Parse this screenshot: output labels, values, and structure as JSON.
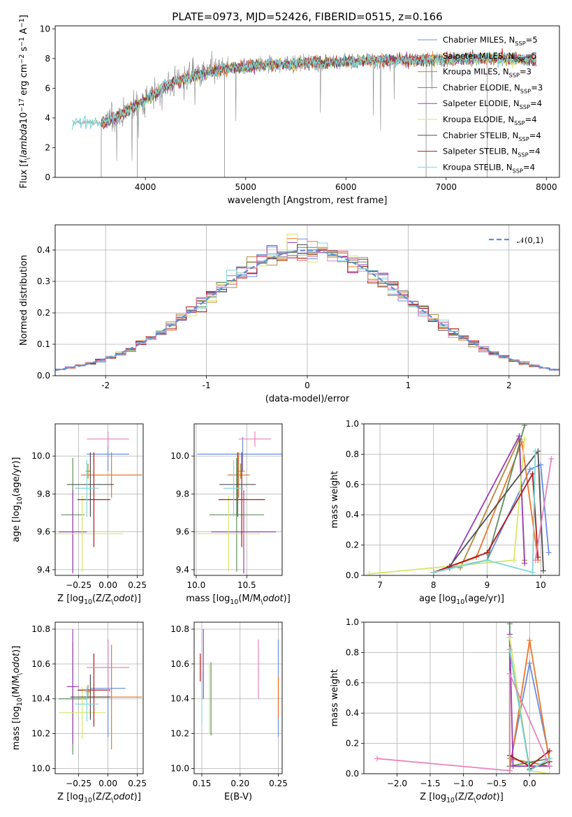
{
  "colors": {
    "Chabrier MILES": "#6a8fe0",
    "Salpeter MILES": "#e8782a",
    "Kroupa MILES": "#b08a3a",
    "Chabrier ELODIE": "#5e8f5e",
    "Salpeter ELODIE": "#9a3fb5",
    "Kroupa ELODIE": "#d6e86a",
    "Chabrier STELIB": "#505050",
    "Salpeter STELIB": "#b01818",
    "Kroupa STELIB": "#7fd8d8",
    "extra": "#e884b8",
    "normal": "#5b8fd8",
    "data": "#8a8a8a"
  },
  "chart_data": [
    {
      "id": "spectrum",
      "type": "line",
      "title": "PLATE=0973, MJD=52426, FIBERID=0515, z=0.166",
      "xlabel": "wavelength [Angstrom, rest frame]",
      "ylabel": "Flux [f$_\\lambda$10$^{-17}$ erg cm$^{-2}$ s$^{-1}$ A$^{-1}$]",
      "xlim": [
        3100,
        8130
      ],
      "ylim": [
        0,
        10.2
      ],
      "xticks": [
        4000,
        5000,
        6000,
        7000,
        8000
      ],
      "yticks": [
        0,
        2,
        4,
        6,
        8,
        10
      ],
      "grid": false,
      "legend_position": "right",
      "legend": [
        "Chabrier MILES, N$_{SSP}$=5",
        "Salpeter MILES, N$_{SSP}$=5",
        "Kroupa MILES, N$_{SSP}$=3",
        "Chabrier ELODIE, N$_{SSP}$=3",
        "Salpeter ELODIE, N$_{SSP}$=4",
        "Kroupa ELODIE, N$_{SSP}$=4",
        "Chabrier STELIB, N$_{SSP}$=4",
        "Salpeter STELIB, N$_{SSP}$=4",
        "Kroupa STELIB, N$_{SSP}$=4"
      ],
      "continuum": {
        "x": [
          3270,
          3600,
          3800,
          4000,
          4200,
          4400,
          4600,
          4800,
          5000,
          5300,
          5600,
          6000,
          6400,
          6800,
          7200,
          7600,
          7900
        ],
        "y": [
          3.7,
          3.7,
          4.4,
          5.2,
          6.1,
          6.7,
          7.0,
          7.3,
          7.5,
          7.6,
          7.7,
          7.8,
          7.9,
          7.9,
          8.0,
          8.0,
          7.9
        ]
      }
    },
    {
      "id": "residuals",
      "type": "bar",
      "xlabel": "(data-model)/error",
      "ylabel": "Normed distribution",
      "xlim": [
        -2.5,
        2.5
      ],
      "ylim": [
        0,
        0.48
      ],
      "xticks": [
        -2,
        -1,
        0,
        1,
        2
      ],
      "yticks": [
        0.0,
        0.1,
        0.2,
        0.3,
        0.4
      ],
      "grid": true,
      "legend": [
        "$\\mathcal{N}(0,1)$"
      ],
      "legend_position": "top-right",
      "bin_width": 0.1
    },
    {
      "id": "age_vs_Z",
      "type": "scatter",
      "xlabel": "Z [log$_{10}$(Z/Z$_\\odot$)]",
      "ylabel": "age  [log$_{10}$(age/yr)]",
      "xlim": [
        -0.45,
        0.3
      ],
      "ylim": [
        9.37,
        10.17
      ],
      "xticks": [
        -0.25,
        0.0,
        0.25
      ],
      "xticklabels": [
        "−0.25",
        "0.00",
        "0.25"
      ],
      "yticks": [
        9.4,
        9.6,
        9.8,
        10.0
      ],
      "grid": true,
      "points": [
        {
          "series": "Chabrier MILES",
          "x": 0.0,
          "xerr": 0.18,
          "y": 10.01,
          "yerr": 0.09
        },
        {
          "series": "Salpeter MILES",
          "x": 0.03,
          "xerr": 0.26,
          "y": 9.9,
          "yerr": 0.12
        },
        {
          "series": "Kroupa MILES",
          "x": -0.17,
          "xerr": 0.02,
          "y": 9.92,
          "yerr": 0.04
        },
        {
          "series": "Chabrier ELODIE",
          "x": -0.3,
          "xerr": 0.1,
          "y": 9.69,
          "yerr": 0.3
        },
        {
          "series": "Salpeter ELODIE",
          "x": -0.3,
          "xerr": 0.12,
          "y": 9.6,
          "yerr": 0.22
        },
        {
          "series": "Kroupa ELODIE",
          "x": -0.22,
          "xerr": 0.35,
          "y": 9.59,
          "yerr": 0.2
        },
        {
          "series": "Chabrier STELIB",
          "x": -0.15,
          "xerr": 0.2,
          "y": 9.85,
          "yerr": 0.17
        },
        {
          "series": "Salpeter STELIB",
          "x": -0.12,
          "xerr": 0.14,
          "y": 9.77,
          "yerr": 0.25
        },
        {
          "series": "Kroupa STELIB",
          "x": -0.18,
          "xerr": 0.1,
          "y": 9.83,
          "yerr": 0.15
        },
        {
          "series": "extra",
          "x": 0.0,
          "xerr": 0.18,
          "y": 10.09,
          "yerr": 0.04
        }
      ]
    },
    {
      "id": "age_vs_mass",
      "type": "scatter",
      "xlabel": "mass [log$_{10}$(M/M$_\\odot$)]",
      "xlim": [
        9.98,
        10.85
      ],
      "ylim": [
        9.37,
        10.17
      ],
      "xticks": [
        10.0,
        10.5
      ],
      "xticklabels": [
        "10.0",
        "10.5"
      ],
      "yticks": [
        9.4,
        9.6,
        9.8,
        10.0
      ],
      "grid": true,
      "points": [
        {
          "series": "Chabrier MILES",
          "x": 10.46,
          "xerr": 0.45,
          "y": 10.01,
          "yerr": 0.09
        },
        {
          "series": "Salpeter MILES",
          "x": 10.42,
          "xerr": 0.11,
          "y": 9.9,
          "yerr": 0.12
        },
        {
          "series": "Kroupa MILES",
          "x": 10.44,
          "xerr": 0.04,
          "y": 9.92,
          "yerr": 0.04
        },
        {
          "series": "Chabrier ELODIE",
          "x": 10.4,
          "xerr": 0.27,
          "y": 9.69,
          "yerr": 0.3
        },
        {
          "series": "Salpeter ELODIE",
          "x": 10.47,
          "xerr": 0.32,
          "y": 9.6,
          "yerr": 0.22
        },
        {
          "series": "Kroupa ELODIE",
          "x": 10.32,
          "xerr": 0.31,
          "y": 9.59,
          "yerr": 0.2
        },
        {
          "series": "Chabrier STELIB",
          "x": 10.41,
          "xerr": 0.18,
          "y": 9.85,
          "yerr": 0.17
        },
        {
          "series": "Salpeter STELIB",
          "x": 10.45,
          "xerr": 0.23,
          "y": 9.77,
          "yerr": 0.25
        },
        {
          "series": "Kroupa STELIB",
          "x": 10.37,
          "xerr": 0.1,
          "y": 9.83,
          "yerr": 0.15
        },
        {
          "series": "extra",
          "x": 10.58,
          "xerr": 0.16,
          "y": 10.09,
          "yerr": 0.04
        }
      ]
    },
    {
      "id": "weight_vs_age",
      "type": "line",
      "xlabel": "age  [log$_{10}$(age/yr)]",
      "ylabel": "mass weight",
      "xlim": [
        6.7,
        10.35
      ],
      "ylim": [
        0,
        1.0
      ],
      "xticks": [
        7,
        8,
        9,
        10
      ],
      "yticks": [
        0.0,
        0.2,
        0.4,
        0.6,
        0.8,
        1.0
      ],
      "grid": true,
      "series": [
        {
          "name": "Chabrier MILES",
          "x": [
            8.3,
            9.0,
            9.8,
            10.0,
            10.15
          ],
          "y": [
            0.05,
            0.1,
            0.7,
            0.73,
            0.15
          ]
        },
        {
          "name": "Salpeter MILES",
          "x": [
            8.0,
            8.8,
            9.65,
            9.95
          ],
          "y": [
            0.02,
            0.12,
            0.88,
            0.1
          ]
        },
        {
          "name": "Kroupa MILES",
          "x": [
            8.5,
            9.6,
            9.7
          ],
          "y": [
            0.05,
            0.9,
            0.1
          ]
        },
        {
          "name": "Chabrier ELODIE",
          "x": [
            8.0,
            9.0,
            9.7
          ],
          "y": [
            0.02,
            0.1,
            0.99
          ]
        },
        {
          "name": "Salpeter ELODIE",
          "x": [
            8.3,
            9.6,
            9.7
          ],
          "y": [
            0.05,
            0.92,
            0.08
          ]
        },
        {
          "name": "Kroupa ELODIE",
          "x": [
            6.8,
            9.5,
            9.7
          ],
          "y": [
            0.01,
            0.1,
            0.9
          ]
        },
        {
          "name": "Chabrier STELIB",
          "x": [
            8.3,
            9.95,
            10.05
          ],
          "y": [
            0.06,
            0.82,
            0.03
          ]
        },
        {
          "name": "Salpeter STELIB",
          "x": [
            8.0,
            9.0,
            9.85,
            9.95
          ],
          "y": [
            0.02,
            0.15,
            0.67,
            0.12
          ]
        },
        {
          "name": "Kroupa STELIB",
          "x": [
            8.0,
            9.0,
            9.85,
            9.9
          ],
          "y": [
            0.02,
            0.1,
            0.02,
            0.82
          ]
        },
        {
          "name": "extra",
          "x": [
            9.9,
            10.2
          ],
          "y": [
            0.1,
            0.77
          ]
        }
      ]
    },
    {
      "id": "mass_vs_Z",
      "type": "scatter",
      "xlabel": "Z [log$_{10}$(Z/Z$_\\odot$)]",
      "ylabel": "mass [log$_{10}$(M/M$_\\odot$)]",
      "xlim": [
        -0.45,
        0.3
      ],
      "ylim": [
        9.97,
        10.84
      ],
      "xticks": [
        -0.25,
        0.0,
        0.25
      ],
      "xticklabels": [
        "−0.25",
        "0.00",
        "0.25"
      ],
      "yticks": [
        10.0,
        10.2,
        10.4,
        10.6,
        10.8
      ],
      "grid": true,
      "points": [
        {
          "series": "Chabrier MILES",
          "x": 0.0,
          "xerr": 0.15,
          "y": 10.46,
          "yerr": 0.28
        },
        {
          "series": "Salpeter MILES",
          "x": 0.03,
          "xerr": 0.26,
          "y": 10.41,
          "yerr": 0.3
        },
        {
          "series": "Kroupa MILES",
          "x": -0.17,
          "xerr": 0.02,
          "y": 10.44,
          "yerr": 0.04
        },
        {
          "series": "Chabrier ELODIE",
          "x": -0.3,
          "xerr": 0.12,
          "y": 10.4,
          "yerr": 0.32
        },
        {
          "series": "Salpeter ELODIE",
          "x": -0.3,
          "xerr": 0.05,
          "y": 10.47,
          "yerr": 0.33
        },
        {
          "series": "Kroupa ELODIE",
          "x": -0.22,
          "xerr": 0.2,
          "y": 10.32,
          "yerr": 0.15
        },
        {
          "series": "Chabrier STELIB",
          "x": -0.15,
          "xerr": 0.17,
          "y": 10.41,
          "yerr": 0.13
        },
        {
          "series": "Salpeter STELIB",
          "x": -0.12,
          "xerr": 0.14,
          "y": 10.45,
          "yerr": 0.21
        },
        {
          "series": "Kroupa STELIB",
          "x": -0.18,
          "xerr": 0.1,
          "y": 10.37,
          "yerr": 0.1
        },
        {
          "series": "extra",
          "x": 0.0,
          "xerr": 0.18,
          "y": 10.58,
          "yerr": 0.16
        }
      ]
    },
    {
      "id": "mass_vs_EBV",
      "type": "scatter",
      "xlabel": "E(B-V)",
      "xlim": [
        0.14,
        0.255
      ],
      "ylim": [
        9.97,
        10.84
      ],
      "xticks": [
        0.15,
        0.2,
        0.25
      ],
      "xticklabels": [
        "0.15",
        "0.20",
        "0.25"
      ],
      "yticks": [
        10.0,
        10.2,
        10.4,
        10.6,
        10.8
      ],
      "grid": true,
      "points": [
        {
          "series": "Chabrier MILES",
          "x": 0.25,
          "y": 10.46,
          "yerr": 0.28
        },
        {
          "series": "Salpeter MILES",
          "x": 0.25,
          "y": 10.41,
          "yerr": 0.12
        },
        {
          "series": "Chabrier ELODIE",
          "x": 0.162,
          "y": 10.4,
          "yerr": 0.21
        },
        {
          "series": "Salpeter ELODIE",
          "x": 0.152,
          "y": 10.6,
          "yerr": 0.2
        },
        {
          "series": "Kroupa ELODIE",
          "x": 0.16,
          "y": 10.4,
          "yerr": 0.2
        },
        {
          "series": "Salpeter STELIB",
          "x": 0.148,
          "y": 10.58,
          "yerr": 0.08
        },
        {
          "series": "Kroupa STELIB",
          "x": 0.15,
          "y": 10.4,
          "yerr": 0.15
        },
        {
          "series": "extra",
          "x": 0.224,
          "y": 10.57,
          "yerr": 0.17
        }
      ]
    },
    {
      "id": "weight_vs_Z",
      "type": "line",
      "xlabel": "Z [log$_{10}$(Z/Z$_\\odot$)]",
      "ylabel": "mass weight",
      "xlim": [
        -2.5,
        0.45
      ],
      "ylim": [
        0,
        1.0
      ],
      "xticks": [
        -2.0,
        -1.5,
        -1.0,
        -0.5,
        0.0
      ],
      "xticklabels": [
        "−2.0",
        "−1.5",
        "−1.0",
        "−0.5",
        "0.0"
      ],
      "yticks": [
        0.0,
        0.2,
        0.4,
        0.6,
        0.8,
        1.0
      ],
      "grid": true,
      "series": [
        {
          "name": "Chabrier MILES",
          "x": [
            -0.3,
            0.0,
            0.3
          ],
          "y": [
            0.05,
            0.73,
            0.1
          ]
        },
        {
          "name": "Salpeter MILES",
          "x": [
            -0.3,
            0.0,
            0.3
          ],
          "y": [
            0.02,
            0.88,
            0.08
          ]
        },
        {
          "name": "Kroupa MILES",
          "x": [
            -0.3,
            -0.3,
            0.3
          ],
          "y": [
            0.9,
            0.1,
            0.05
          ]
        },
        {
          "name": "Chabrier ELODIE",
          "x": [
            -0.3,
            -0.3,
            0.3
          ],
          "y": [
            0.99,
            0.05,
            0.1
          ]
        },
        {
          "name": "Salpeter ELODIE",
          "x": [
            -0.3,
            -0.25,
            0.3
          ],
          "y": [
            0.92,
            0.05,
            0.05
          ]
        },
        {
          "name": "Kroupa ELODIE",
          "x": [
            -0.3,
            0.0,
            0.3
          ],
          "y": [
            0.9,
            0.02,
            0.0
          ]
        },
        {
          "name": "Chabrier STELIB",
          "x": [
            -0.3,
            0.0,
            0.3
          ],
          "y": [
            0.82,
            0.03,
            0.08
          ]
        },
        {
          "name": "Salpeter STELIB",
          "x": [
            -0.3,
            0.0,
            0.3
          ],
          "y": [
            0.12,
            0.05,
            0.15
          ]
        },
        {
          "name": "Kroupa STELIB",
          "x": [
            -0.3,
            0.0,
            0.3
          ],
          "y": [
            0.82,
            0.02,
            0.1
          ]
        },
        {
          "name": "extra",
          "x": [
            -2.3,
            -0.3,
            -0.3,
            0.3
          ],
          "y": [
            0.1,
            0.02,
            0.66,
            0.05
          ]
        }
      ]
    }
  ]
}
